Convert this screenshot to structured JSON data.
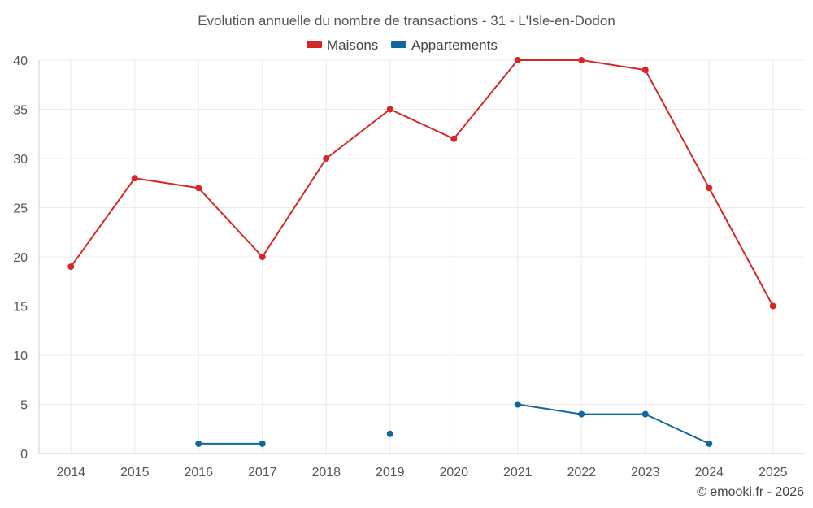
{
  "colors": {
    "maisons": "#d62728",
    "appartements": "#1166a0"
  },
  "chart_data": {
    "type": "line",
    "title": "Evolution annuelle du nombre de transactions - 31 - L'Isle-en-Dodon",
    "categories": [
      "2014",
      "2015",
      "2016",
      "2017",
      "2018",
      "2019",
      "2020",
      "2021",
      "2022",
      "2023",
      "2024",
      "2025"
    ],
    "series": [
      {
        "name": "Maisons",
        "color": "#d62728",
        "values": [
          19,
          28,
          27,
          20,
          30,
          35,
          32,
          40,
          40,
          39,
          27,
          15
        ]
      },
      {
        "name": "Appartements",
        "color": "#1166a0",
        "values": [
          null,
          null,
          1,
          1,
          null,
          2,
          null,
          5,
          4,
          4,
          1,
          null
        ]
      }
    ],
    "ylim": [
      0,
      40
    ],
    "yticks": [
      0,
      5,
      10,
      15,
      20,
      25,
      30,
      35,
      40
    ],
    "xlabel": "",
    "ylabel": "",
    "grid": true,
    "legend": "top-center"
  },
  "credit": "© emooki.fr - 2026"
}
